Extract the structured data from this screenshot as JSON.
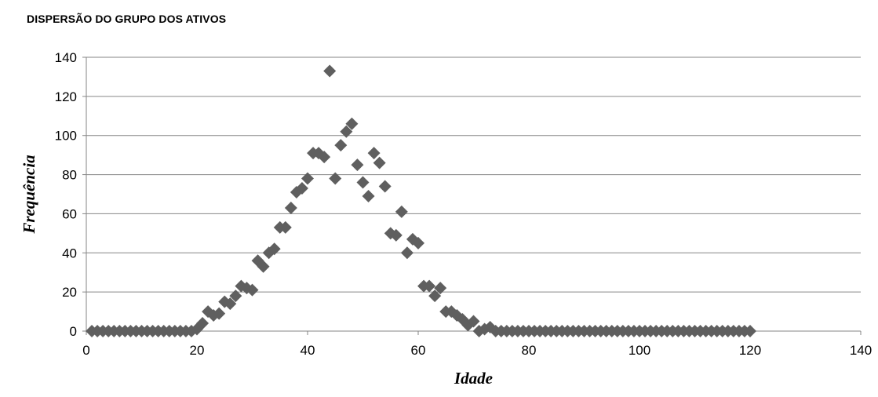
{
  "chart_data": {
    "type": "scatter",
    "title": "DISPERSÃO DO GRUPO DOS ATIVOS",
    "xlabel": "Idade",
    "ylabel": "Frequência",
    "xlim": [
      0,
      140
    ],
    "ylim": [
      0,
      140
    ],
    "x_ticks": [
      0,
      20,
      40,
      60,
      80,
      100,
      120,
      140
    ],
    "y_ticks": [
      0,
      20,
      40,
      60,
      80,
      100,
      120,
      140
    ],
    "grid": "horizontal",
    "legend": "none",
    "marker": "diamond",
    "marker_color": "#5f5f5f",
    "series": [
      {
        "x": [
          1,
          2,
          3,
          4,
          5,
          6,
          7,
          8,
          9,
          10,
          11,
          12,
          13,
          14,
          15,
          16,
          17,
          18,
          19,
          20,
          21,
          22,
          23,
          24,
          25,
          26,
          27,
          28,
          29,
          30,
          31,
          32,
          33,
          34,
          35,
          36,
          37,
          38,
          39,
          40,
          41,
          42,
          43,
          44,
          45,
          46,
          47,
          48,
          49,
          50,
          51,
          52,
          53,
          54,
          55,
          56,
          57,
          58,
          59,
          60,
          61,
          62,
          63,
          64,
          65,
          66,
          67,
          68,
          69,
          70,
          71,
          72,
          73,
          74,
          75,
          76,
          77,
          78,
          79,
          80,
          81,
          82,
          83,
          84,
          85,
          86,
          87,
          88,
          89,
          90,
          91,
          92,
          93,
          94,
          95,
          96,
          97,
          98,
          99,
          100,
          101,
          102,
          103,
          104,
          105,
          106,
          107,
          108,
          109,
          110,
          111,
          112,
          113,
          114,
          115,
          116,
          117,
          118,
          119,
          120
        ],
        "y": [
          0,
          0,
          0,
          0,
          0,
          0,
          0,
          0,
          0,
          0,
          0,
          0,
          0,
          0,
          0,
          0,
          0,
          0,
          0,
          1,
          4,
          10,
          8,
          9,
          15,
          14,
          18,
          23,
          22,
          21,
          36,
          33,
          40,
          42,
          53,
          53,
          63,
          71,
          73,
          78,
          91,
          91,
          89,
          133,
          78,
          95,
          102,
          106,
          85,
          76,
          69,
          91,
          86,
          74,
          50,
          49,
          61,
          40,
          47,
          45,
          23,
          23,
          18,
          22,
          10,
          10,
          8,
          6,
          3,
          5,
          0,
          1,
          2,
          0,
          0,
          0,
          0,
          0,
          0,
          0,
          0,
          0,
          0,
          0,
          0,
          0,
          0,
          0,
          0,
          0,
          0,
          0,
          0,
          0,
          0,
          0,
          0,
          0,
          0,
          0,
          0,
          0,
          0,
          0,
          0,
          0,
          0,
          0,
          0,
          0,
          0,
          0,
          0,
          0,
          0,
          0,
          0,
          0,
          0,
          0
        ]
      }
    ]
  }
}
